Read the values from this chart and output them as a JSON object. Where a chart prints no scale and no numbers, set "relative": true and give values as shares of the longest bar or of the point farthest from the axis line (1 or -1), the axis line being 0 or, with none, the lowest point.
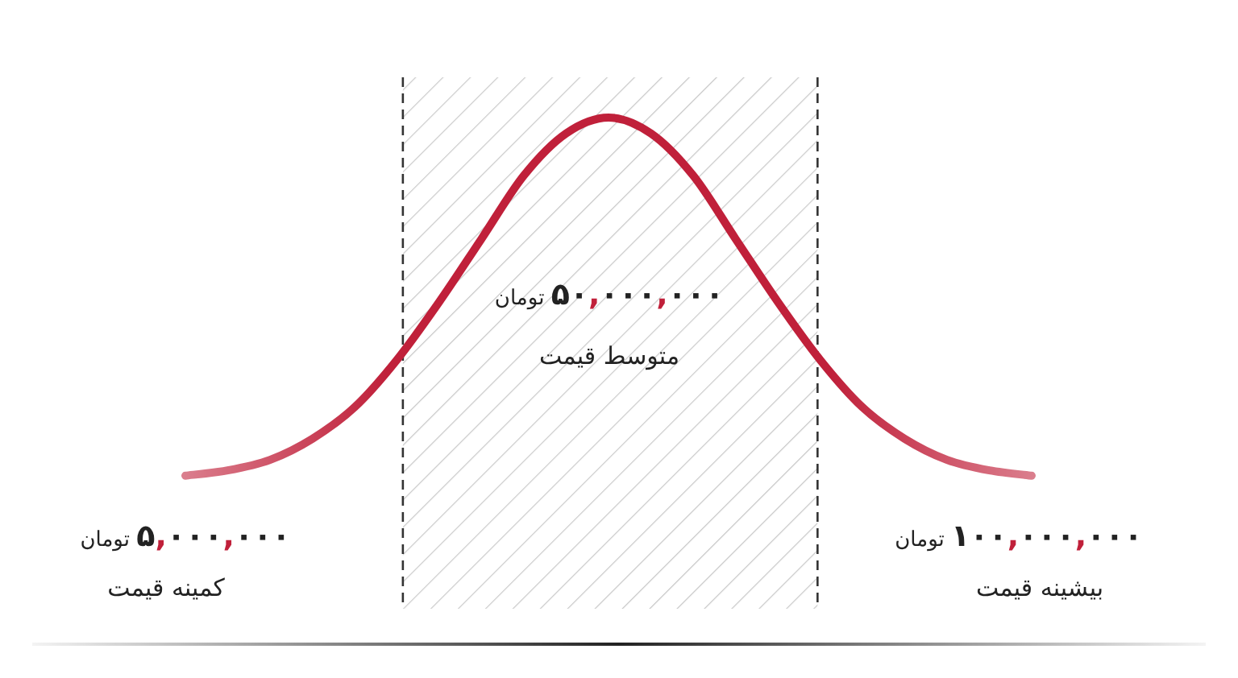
{
  "chart_data": {
    "type": "line",
    "relative": true,
    "categories": [
      null,
      null,
      null,
      null,
      null,
      null,
      null,
      null,
      null,
      null,
      null,
      null,
      null,
      null,
      null,
      null,
      null,
      null,
      null,
      null,
      null
    ],
    "series": [
      {
        "color": "#c0203a",
        "values": [
          0.32,
          0.33,
          0.35,
          0.39,
          0.45,
          0.54,
          0.65,
          0.77,
          0.89,
          0.97,
          1.0,
          0.97,
          0.89,
          0.77,
          0.65,
          0.54,
          0.45,
          0.39,
          0.35,
          0.33,
          0.32
        ]
      }
    ],
    "annotations": [
      "۵,۰۰۰,۰۰۰ تومان",
      "کمینه قیمت",
      "۵۰,۰۰۰,۰۰۰ تومان",
      "متوسط قیمت",
      "۱۰۰,۰۰۰,۰۰۰ تومان",
      "بیشینه قیمت"
    ]
  }
}
